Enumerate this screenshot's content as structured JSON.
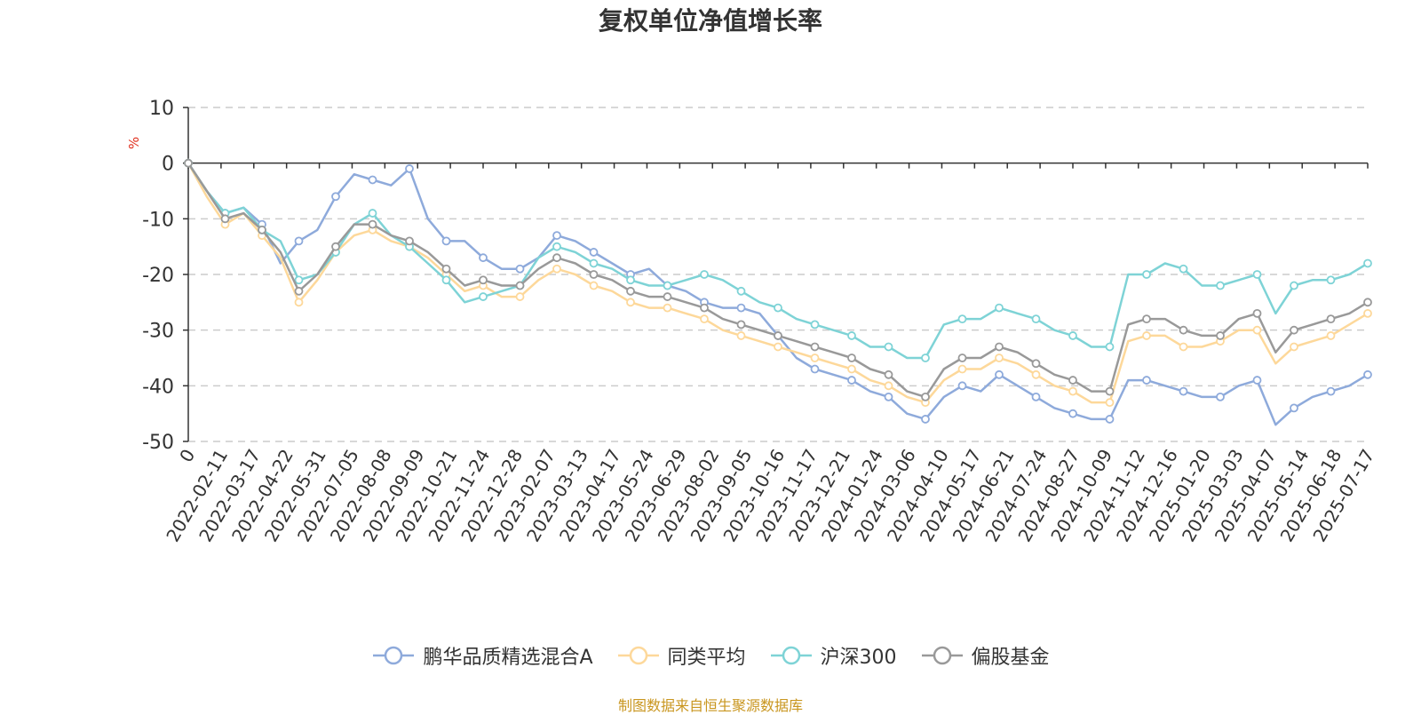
{
  "chart_data": {
    "type": "line",
    "title": "复权单位净值增长率",
    "ylabel": "%",
    "ylim": [
      -50,
      10
    ],
    "yticks": [
      10,
      0,
      -10,
      -20,
      -30,
      -40,
      -50
    ],
    "x_tick_labels": [
      "0",
      "2022-02-11",
      "2022-03-17",
      "2022-04-22",
      "2022-05-31",
      "2022-07-05",
      "2022-08-08",
      "2022-09-09",
      "2022-10-21",
      "2022-11-24",
      "2022-12-28",
      "2023-02-07",
      "2023-03-13",
      "2023-04-17",
      "2023-05-24",
      "2023-06-29",
      "2023-08-02",
      "2023-09-05",
      "2023-10-16",
      "2023-11-17",
      "2023-12-21",
      "2024-01-24",
      "2024-03-06",
      "2024-04-10",
      "2024-05-17",
      "2024-06-21",
      "2024-07-24",
      "2024-08-27",
      "2024-10-09",
      "2024-11-12",
      "2024-12-16",
      "2025-01-20",
      "2025-03-03",
      "2025-04-07",
      "2025-05-14",
      "2025-06-18",
      "2025-07-17"
    ],
    "grid": true,
    "legend_position": "bottom",
    "series": [
      {
        "name": "鹏华品质精选混合A",
        "color": "#8eaadb",
        "values": [
          0,
          -5,
          -9,
          -8,
          -11,
          -18,
          -14,
          -12,
          -6,
          -2,
          -3,
          -4,
          -1,
          -10,
          -14,
          -14,
          -17,
          -19,
          -19,
          -17,
          -13,
          -14,
          -16,
          -18,
          -20,
          -19,
          -22,
          -23,
          -25,
          -26,
          -26,
          -27,
          -31,
          -35,
          -37,
          -38,
          -39,
          -41,
          -42,
          -45,
          -46,
          -42,
          -40,
          -41,
          -38,
          -40,
          -42,
          -44,
          -45,
          -46,
          -46,
          -39,
          -39,
          -40,
          -41,
          -42,
          -42,
          -40,
          -39,
          -47,
          -44,
          -42,
          -41,
          -40,
          -38
        ]
      },
      {
        "name": "同类平均",
        "color": "#fdd89a",
        "values": [
          0,
          -6,
          -11,
          -9,
          -13,
          -17,
          -25,
          -21,
          -16,
          -13,
          -12,
          -14,
          -15,
          -17,
          -20,
          -23,
          -22,
          -24,
          -24,
          -21,
          -19,
          -20,
          -22,
          -23,
          -25,
          -26,
          -26,
          -27,
          -28,
          -30,
          -31,
          -32,
          -33,
          -34,
          -35,
          -36,
          -37,
          -39,
          -40,
          -42,
          -43,
          -39,
          -37,
          -37,
          -35,
          -36,
          -38,
          -40,
          -41,
          -43,
          -43,
          -32,
          -31,
          -31,
          -33,
          -33,
          -32,
          -30,
          -30,
          -36,
          -33,
          -32,
          -31,
          -29,
          -27
        ]
      },
      {
        "name": "沪深300",
        "color": "#7ed3d6",
        "values": [
          0,
          -5,
          -9,
          -8,
          -12,
          -14,
          -21,
          -20,
          -16,
          -11,
          -9,
          -13,
          -15,
          -18,
          -21,
          -25,
          -24,
          -23,
          -22,
          -17,
          -15,
          -16,
          -18,
          -19,
          -21,
          -22,
          -22,
          -21,
          -20,
          -21,
          -23,
          -25,
          -26,
          -28,
          -29,
          -30,
          -31,
          -33,
          -33,
          -35,
          -35,
          -29,
          -28,
          -28,
          -26,
          -27,
          -28,
          -30,
          -31,
          -33,
          -33,
          -20,
          -20,
          -18,
          -19,
          -22,
          -22,
          -21,
          -20,
          -27,
          -22,
          -21,
          -21,
          -20,
          -18
        ]
      },
      {
        "name": "偏股基金",
        "color": "#999999",
        "values": [
          0,
          -5,
          -10,
          -9,
          -12,
          -16,
          -23,
          -20,
          -15,
          -11,
          -11,
          -13,
          -14,
          -16,
          -19,
          -22,
          -21,
          -22,
          -22,
          -19,
          -17,
          -18,
          -20,
          -21,
          -23,
          -24,
          -24,
          -25,
          -26,
          -28,
          -29,
          -30,
          -31,
          -32,
          -33,
          -34,
          -35,
          -37,
          -38,
          -41,
          -42,
          -37,
          -35,
          -35,
          -33,
          -34,
          -36,
          -38,
          -39,
          -41,
          -41,
          -29,
          -28,
          -28,
          -30,
          -31,
          -31,
          -28,
          -27,
          -34,
          -30,
          -29,
          -28,
          -27,
          -25
        ]
      }
    ]
  },
  "source_note": "制图数据来自恒生聚源数据库"
}
